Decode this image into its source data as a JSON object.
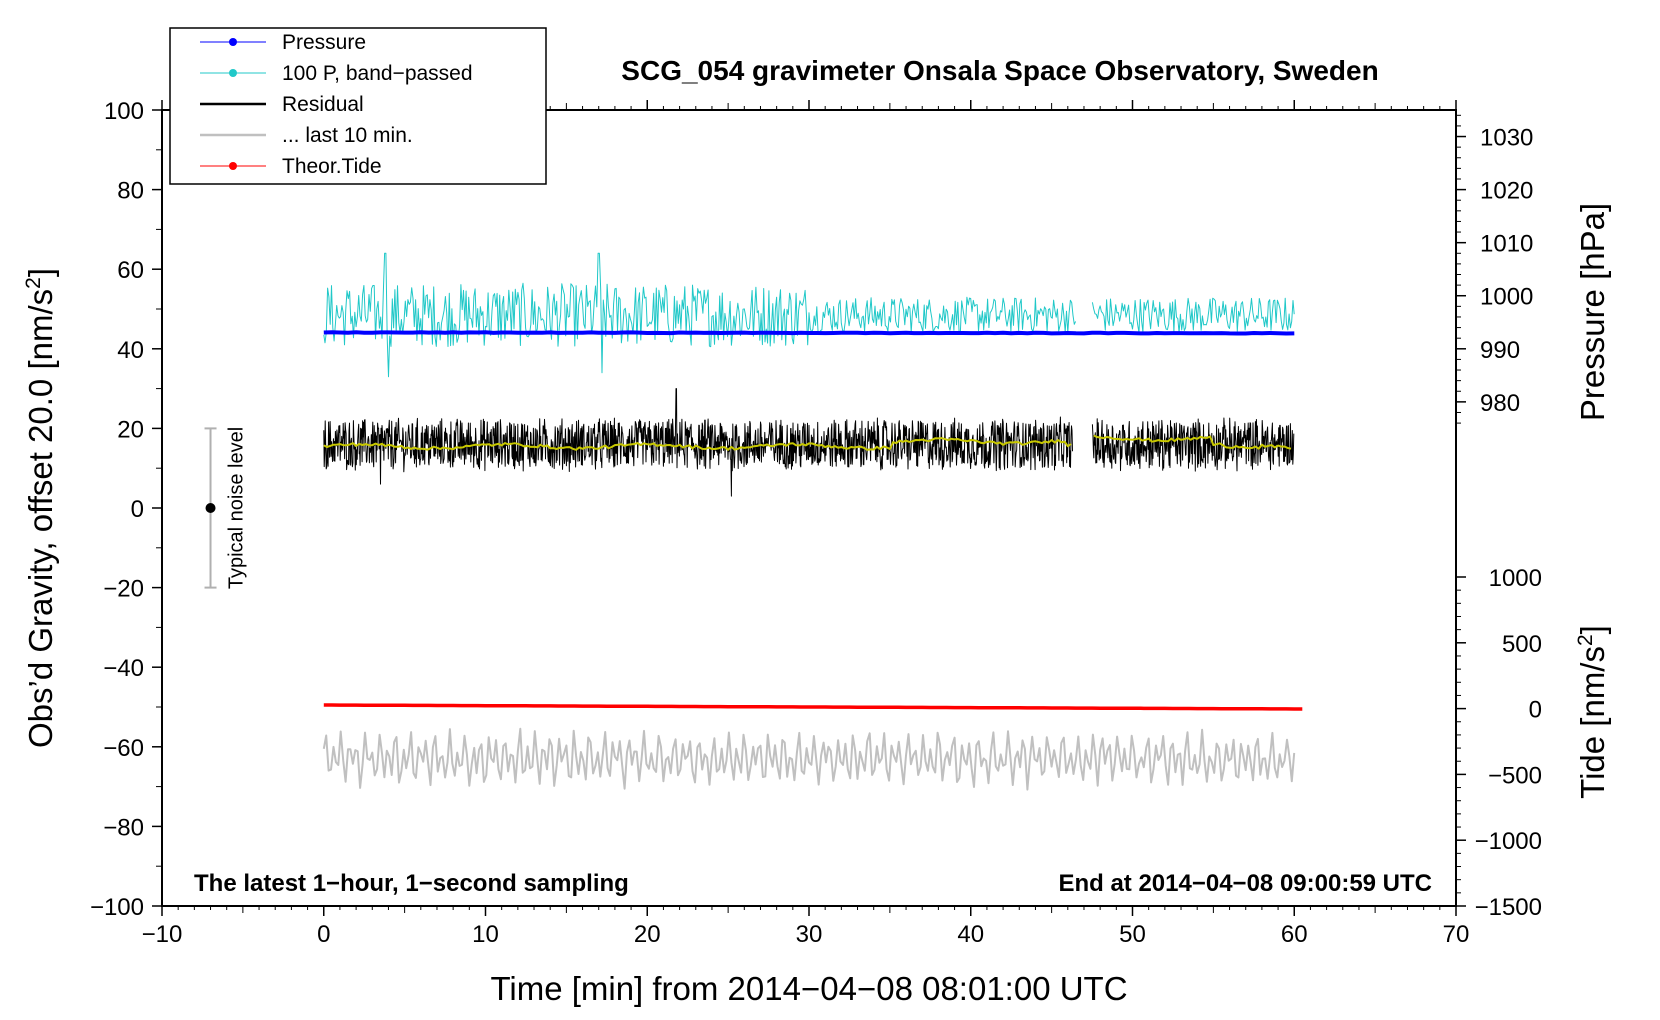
{
  "chart_data": {
    "type": "line",
    "title": "SCG_054 gravimeter Onsala Space Observatory, Sweden",
    "xlabel": "Time [min] from 2014−04−08 08:01:00 UTC",
    "ylabel_left": "Obs’d Gravity, offset 20.0 [nm/s",
    "ylabel_left_sup": "2",
    "ylabel_left_close": "]",
    "ylabel_pressure": "Pressure [hPa]",
    "ylabel_tide": "Tide [nm/s",
    "ylabel_tide_sup": "2",
    "ylabel_tide_close": "]",
    "xlim": [
      -10,
      70
    ],
    "ylim": [
      -100,
      100
    ],
    "x_ticks": [
      "−10",
      "0",
      "10",
      "20",
      "30",
      "40",
      "50",
      "60",
      "70"
    ],
    "x_tick_values": [
      -10,
      0,
      10,
      20,
      30,
      40,
      50,
      60,
      70
    ],
    "y_ticks": [
      "100",
      "80",
      "60",
      "40",
      "20",
      "0",
      "−20",
      "−40",
      "−60",
      "−80",
      "−100"
    ],
    "y_tick_values": [
      100,
      80,
      60,
      40,
      20,
      0,
      -20,
      -40,
      -60,
      -80,
      -100
    ],
    "pressure_axis": {
      "range_hpa": [
        975,
        1035
      ],
      "ticks": [
        "1030",
        "1020",
        "1010",
        "1000",
        "990",
        "980"
      ],
      "tick_values": [
        1030,
        1020,
        1010,
        1000,
        990,
        980
      ]
    },
    "tide_axis": {
      "range": [
        -1500,
        1500
      ],
      "ticks": [
        "1000",
        "500",
        "0",
        "−500",
        "−1000",
        "−1500"
      ],
      "tick_values": [
        1000,
        500,
        0,
        -500,
        -1000,
        -1500
      ]
    },
    "note_left": "The latest 1−hour, 1−second sampling",
    "note_right": "End at 2014−04−08 09:00:59 UTC",
    "noise_indicator": {
      "label": "Typical noise level",
      "x": -7,
      "center": 0,
      "low": -20,
      "high": 20
    },
    "legend": [
      {
        "label": "Pressure",
        "color": "#0000ff",
        "marker": true
      },
      {
        "label": "100 P, band−passed",
        "color": "#20c8c8",
        "marker": true
      },
      {
        "label": "Residual",
        "color": "#000000",
        "marker": false
      },
      {
        "label": "... last 10 min.",
        "color": "#c0c0c0",
        "marker": false
      },
      {
        "label": "Theor.Tide",
        "color": "#ff0000",
        "marker": true
      }
    ],
    "series": [
      {
        "name": "Pressure",
        "color": "#0000ff",
        "x_range": [
          0,
          60
        ],
        "baseline": 44.0,
        "start": 44.1,
        "end": 43.9
      },
      {
        "name": "100 P, band-passed",
        "color": "#20c8c8",
        "x_range": [
          0,
          60
        ],
        "baseline": 48.5,
        "gap": [
          46.5,
          47.5
        ],
        "spikes": [
          [
            3.8,
            64
          ],
          [
            4.0,
            33
          ],
          [
            17.0,
            64
          ],
          [
            17.2,
            34
          ]
        ]
      },
      {
        "name": "Residual",
        "color": "#000000",
        "x_range": [
          0,
          60
        ],
        "baseline": 16,
        "gap": [
          46.3,
          47.5
        ],
        "spikes": [
          [
            21.8,
            30
          ],
          [
            25.2,
            3
          ],
          [
            3.5,
            6
          ]
        ]
      },
      {
        "name": "Residual smoothed",
        "color": "#c8c800",
        "x_range": [
          0,
          60
        ],
        "baseline": 16
      },
      {
        "name": "... last 10 min.",
        "color": "#c0c0c0",
        "x_range": [
          0,
          60
        ],
        "baseline": -63,
        "min": -71,
        "max": -50
      },
      {
        "name": "Theor.Tide",
        "color": "#ff0000",
        "x_range": [
          0,
          60.5
        ],
        "start": -49.5,
        "end": -50.5
      }
    ]
  }
}
